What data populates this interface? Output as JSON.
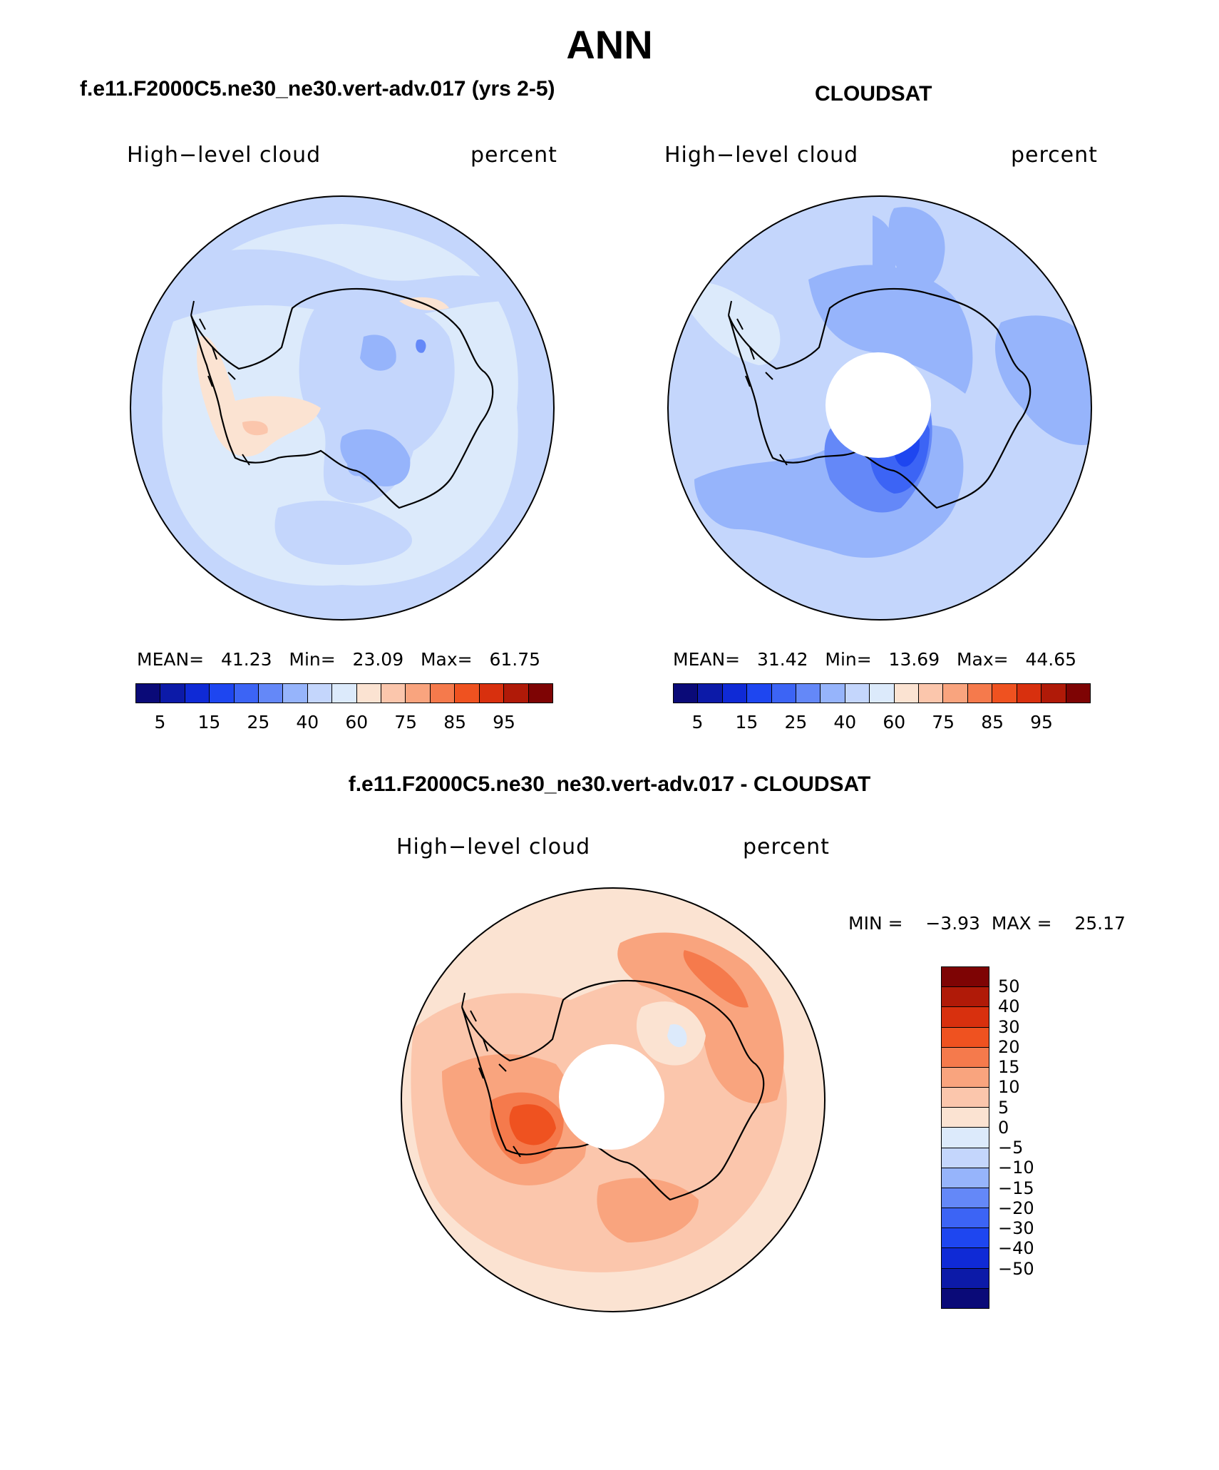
{
  "title": "ANN",
  "panels": [
    {
      "id": "model",
      "title": "f.e11.F2000C5.ne30_ne30.vert-adv.017 (yrs 2-5)",
      "variable": "High−level cloud",
      "units": "percent",
      "stats": {
        "mean_label": "MEAN=",
        "mean": "41.23",
        "min_label": "Min=",
        "min": "23.09",
        "max_label": "Max=",
        "max": "61.75"
      }
    },
    {
      "id": "obs",
      "title": "CLOUDSAT",
      "variable": "High−level cloud",
      "units": "percent",
      "stats": {
        "mean_label": "MEAN=",
        "mean": "31.42",
        "min_label": "Min=",
        "min": "13.69",
        "max_label": "Max=",
        "max": "44.65"
      }
    },
    {
      "id": "diff",
      "title": "f.e11.F2000C5.ne30_ne30.vert-adv.017 - CLOUDSAT",
      "variable": "High−level cloud",
      "units": "percent",
      "stats": {
        "min_label": "MIN =",
        "min": "−3.93",
        "max_label": "MAX =",
        "max": "25.17"
      }
    }
  ],
  "colorbar_abs": {
    "colors": [
      "#0a0a78",
      "#0c1aa8",
      "#0f2ad6",
      "#1e46f0",
      "#3c64f5",
      "#6488f8",
      "#96b4fb",
      "#c4d6fc",
      "#dceafb",
      "#fbe3d2",
      "#fbc6ac",
      "#f9a47e",
      "#f57a4c",
      "#ef5220",
      "#d8300e",
      "#b01a08",
      "#7e0404"
    ],
    "ticks": [
      "5",
      "15",
      "25",
      "40",
      "60",
      "75",
      "85",
      "95"
    ]
  },
  "colorbar_diff": {
    "colors_top_to_bottom": [
      "#7e0404",
      "#b01a08",
      "#d8300e",
      "#ef5220",
      "#f57a4c",
      "#f9a47e",
      "#fbc6ac",
      "#fbe3d2",
      "#dceafb",
      "#c4d6fc",
      "#96b4fb",
      "#6488f8",
      "#3c64f5",
      "#1e46f0",
      "#0f2ad6",
      "#0c1aa8",
      "#0a0a78"
    ],
    "ticks": [
      "50",
      "40",
      "30",
      "20",
      "15",
      "10",
      "5",
      "0",
      "−5",
      "−10",
      "−15",
      "−20",
      "−30",
      "−40",
      "−50"
    ]
  },
  "map_colors": {
    "model": {
      "base": "#dceafb",
      "mid": "#c4d6fc",
      "low": "#96b4fb",
      "lowest": "#6488f8",
      "warm": "#fbe3d2",
      "warm2": "#fbc6ac"
    },
    "obs": {
      "base": "#c4d6fc",
      "light": "#dceafb",
      "mid": "#96b4fb",
      "low": "#6488f8",
      "lower": "#3c64f5",
      "lowest": "#1e46f0"
    },
    "diff": {
      "base": "#fbe3d2",
      "mid": "#fbc6ac",
      "high": "#f9a47e",
      "higher": "#f57a4c",
      "highest": "#ef5220",
      "cool": "#dceafb"
    }
  }
}
